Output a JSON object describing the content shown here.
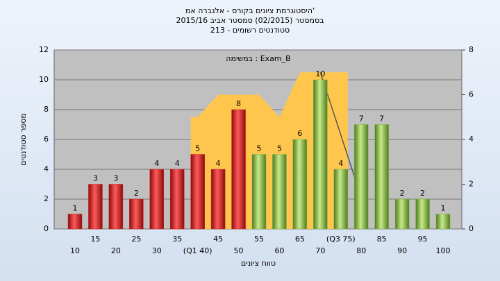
{
  "chart_data": {
    "type": "bar",
    "title": [
      "היסטוגרמת ציונים בקורס - אלגברה אמ'",
      "בסמסטר  (02/2015)  סמסטר אביב 2015/16",
      "סטודנטים רשומים - 213"
    ],
    "annotation": "במשימה : Exam_B",
    "x_label": "טווח ציונים",
    "y_label": "מספר סטודנטים",
    "categories": [
      "10",
      "15",
      "20",
      "25",
      "30",
      "35",
      "(Q1 40)",
      "45",
      "50",
      "55",
      "60",
      "65",
      "70",
      "(Q3 75)",
      "80",
      "85",
      "90",
      "95",
      "100"
    ],
    "values": [
      1,
      3,
      3,
      2,
      4,
      4,
      5,
      4,
      8,
      5,
      5,
      6,
      10,
      4,
      7,
      7,
      2,
      2,
      1
    ],
    "bar_colors": [
      "#d42020",
      "#d42020",
      "#d42020",
      "#d42020",
      "#d42020",
      "#d42020",
      "#d42020",
      "#d42020",
      "#d42020",
      "#7fb540",
      "#7fb540",
      "#7fb540",
      "#7fb540",
      "#7fb540",
      "#7fb540",
      "#7fb540",
      "#7fb540",
      "#7fb540",
      "#7fb540"
    ],
    "series": [
      {
        "type": "area",
        "axis": "y2",
        "color": "#ffc64d",
        "values": [
          null,
          null,
          null,
          null,
          null,
          null,
          5,
          6,
          6,
          6,
          5,
          7,
          7,
          7,
          null,
          null,
          null,
          null,
          null
        ]
      },
      {
        "type": "line",
        "axis": "y2",
        "color": "#555555",
        "values": [
          null,
          null,
          null,
          null,
          null,
          null,
          null,
          null,
          null,
          null,
          null,
          null,
          7,
          4.2,
          1.4,
          null,
          null,
          null,
          null
        ]
      }
    ],
    "ylim": [
      0,
      12
    ],
    "yticks": [
      0,
      2,
      4,
      6,
      8,
      10,
      12
    ],
    "y2lim": [
      0,
      8
    ],
    "y2ticks": [
      0,
      2,
      4,
      6,
      8
    ],
    "grid": true
  }
}
